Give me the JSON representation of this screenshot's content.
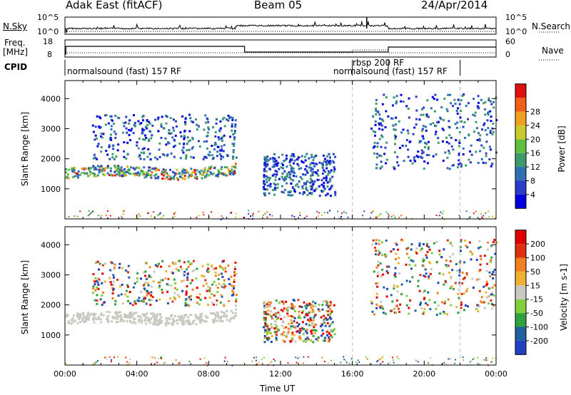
{
  "header": {
    "left_title": "Adak East (fitACF)",
    "center_title": "Beam 05",
    "right_title": "24/Apr/2014"
  },
  "noise_panel": {
    "left_label": "N.Sky",
    "right_label": "N.Search",
    "left_ticks": [
      "10^5",
      "10^0"
    ],
    "right_ticks": [
      "10^5",
      "10^0"
    ]
  },
  "freq_panel": {
    "left_label": "Freq.",
    "left_unit": "[MHz]",
    "left_ticks": [
      "18",
      "8"
    ],
    "right_label": "Nave",
    "right_ticks": [
      "60",
      "0"
    ]
  },
  "cpid": {
    "label": "CPID",
    "modes": [
      {
        "name": "normalsound (fast) 157 RF",
        "start_hour": 0
      },
      {
        "name": "rbsp 200 RF",
        "start_hour": 16
      },
      {
        "name": "normalsound (fast) 157 RF",
        "start_hour": 18
      }
    ]
  },
  "chart_data": [
    {
      "type": "heatmap",
      "title": "",
      "xlabel": "Time UT",
      "ylabel": "Slant Range [km]",
      "xlim": [
        0,
        24
      ],
      "ylim": [
        0,
        4600
      ],
      "x_ticks": [
        "00:00",
        "04:00",
        "08:00",
        "12:00",
        "16:00",
        "20:00",
        "00:00"
      ],
      "y_ticks": [
        1000,
        2000,
        3000,
        4000
      ],
      "dashed_markers_hours": [
        16,
        22
      ],
      "colorbar": {
        "label": "Power [dB]",
        "ticks": [
          "4",
          "8",
          "12",
          "16",
          "20",
          "24",
          "28"
        ],
        "colors": [
          "#0000dd",
          "#2a3dc8",
          "#2f6fb4",
          "#3c9a6e",
          "#5fbf3f",
          "#c9c92d",
          "#f0a020",
          "#f06018",
          "#e01010"
        ]
      },
      "echo_regions": [
        {
          "name": "ground scatter band",
          "hours": [
            0,
            9.5
          ],
          "range_km": [
            1400,
            1900
          ],
          "power_db": [
            8,
            28
          ]
        },
        {
          "name": "upper scatter",
          "hours": [
            1.5,
            9.5
          ],
          "range_km": [
            2000,
            3500
          ],
          "power_db": [
            4,
            16
          ]
        },
        {
          "name": "12UT patches",
          "hours": [
            11,
            15
          ],
          "range_km": [
            800,
            2200
          ],
          "power_db": [
            4,
            16
          ]
        },
        {
          "name": "late scatter",
          "hours": [
            17,
            24
          ],
          "range_km": [
            1700,
            4200
          ],
          "power_db": [
            4,
            20
          ]
        }
      ],
      "grid": false
    },
    {
      "type": "heatmap",
      "title": "",
      "xlabel": "Time UT",
      "ylabel": "Slant Range [km]",
      "xlim": [
        0,
        24
      ],
      "ylim": [
        0,
        4600
      ],
      "x_ticks": [
        "00:00",
        "04:00",
        "08:00",
        "12:00",
        "16:00",
        "20:00",
        "00:00"
      ],
      "y_ticks": [
        1000,
        2000,
        3000,
        4000
      ],
      "dashed_markers_hours": [
        16,
        22
      ],
      "colorbar": {
        "label": "Velocity [m s-1]",
        "ticks": [
          "200",
          "100",
          "50",
          "15",
          "-15",
          "-50",
          "-100",
          "-200"
        ],
        "colors": [
          "#2040c0",
          "#2060a0",
          "#30a040",
          "#80d040",
          "#c8c8c0",
          "#f0b030",
          "#f08020",
          "#e03010",
          "#e00000"
        ]
      },
      "echo_regions": [
        {
          "name": "ground scatter band",
          "hours": [
            0,
            9.5
          ],
          "range_km": [
            1400,
            1900
          ],
          "velocity": [
            -15,
            15
          ]
        },
        {
          "name": "upper scatter",
          "hours": [
            1.5,
            9.5
          ],
          "range_km": [
            2000,
            3500
          ],
          "velocity": [
            -200,
            200
          ]
        },
        {
          "name": "12UT patches",
          "hours": [
            11,
            15
          ],
          "range_km": [
            800,
            2200
          ],
          "velocity": [
            15,
            200
          ]
        },
        {
          "name": "late scatter",
          "hours": [
            17,
            24
          ],
          "range_km": [
            1700,
            4200
          ],
          "velocity": [
            -200,
            200
          ]
        }
      ],
      "grid": false
    }
  ]
}
